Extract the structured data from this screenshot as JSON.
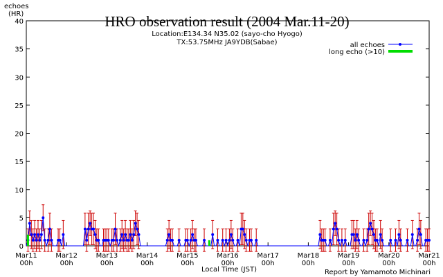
{
  "chart_data": {
    "type": "line",
    "title": "HRO observation result (2004 Mar.11-20)",
    "subtitle": [
      "Location:E134.34 N35.02 (sayo-cho Hyogo)",
      "TX:53.75MHz JA9YDB(Sabae)"
    ],
    "y_label": [
      "echoes",
      "(HR)"
    ],
    "x_label": "Local Time (JST)",
    "credit": "Report by Yamamoto Michinari",
    "ylim": [
      0,
      40
    ],
    "yticks": [
      0,
      5,
      10,
      15,
      20,
      25,
      30,
      35,
      40
    ],
    "legend": "upper right",
    "categories": [
      "Mar11 00h",
      null,
      null,
      null,
      null,
      null,
      null,
      null,
      null,
      null,
      null,
      null,
      null,
      null,
      null,
      null,
      null,
      null,
      null,
      null,
      null,
      null,
      null,
      null,
      "Mar12 00h",
      null,
      null,
      null,
      null,
      null,
      null,
      null,
      null,
      null,
      null,
      null,
      null,
      null,
      null,
      null,
      null,
      null,
      null,
      null,
      null,
      null,
      null,
      null,
      "Mar13 00h",
      null,
      null,
      null,
      null,
      null,
      null,
      null,
      null,
      null,
      null,
      null,
      null,
      null,
      null,
      null,
      null,
      null,
      null,
      null,
      null,
      null,
      null,
      null,
      "Mar14 00h",
      null,
      null,
      null,
      null,
      null,
      null,
      null,
      null,
      null,
      null,
      null,
      null,
      null,
      null,
      null,
      null,
      null,
      null,
      null,
      null,
      null,
      null,
      null,
      "Mar15 00h",
      null,
      null,
      null,
      null,
      null,
      null,
      null,
      null,
      null,
      null,
      null,
      null,
      null,
      null,
      null,
      null,
      null,
      null,
      null,
      null,
      null,
      null,
      null,
      "Mar16 00h",
      null,
      null,
      null,
      null,
      null,
      null,
      null,
      null,
      null,
      null,
      null,
      null,
      null,
      null,
      null,
      null,
      null,
      null,
      null,
      null,
      null,
      null,
      null,
      "Mar17 00h",
      null,
      null,
      null,
      null,
      null,
      null,
      null,
      null,
      null,
      null,
      null,
      null,
      null,
      null,
      null,
      null,
      null,
      null,
      null,
      null,
      null,
      null,
      null,
      "Mar18 00h",
      null,
      null,
      null,
      null,
      null,
      null,
      null,
      null,
      null,
      null,
      null,
      null,
      null,
      null,
      null,
      null,
      null,
      null,
      null,
      null,
      null,
      null,
      null,
      "Mar19 00h",
      null,
      null,
      null,
      null,
      null,
      null,
      null,
      null,
      null,
      null,
      null,
      null,
      null,
      null,
      null,
      null,
      null,
      null,
      null,
      null,
      null,
      null,
      null,
      "Mar20 00h",
      null,
      null,
      null,
      null,
      null,
      null,
      null,
      null,
      null,
      null,
      null,
      null,
      null,
      null,
      null,
      null,
      null,
      null,
      null,
      null,
      null,
      null,
      null,
      "Mar21 00h"
    ],
    "series": [
      {
        "name": "all echoes",
        "color": "#0000ff",
        "error_color": "#cc0000",
        "values": [
          0,
          1,
          4,
          2,
          1,
          2,
          1,
          2,
          1,
          2,
          5,
          1,
          0,
          1,
          3,
          1,
          0,
          0,
          0,
          1,
          1,
          0,
          2,
          0,
          0,
          0,
          0,
          0,
          0,
          0,
          0,
          0,
          0,
          0,
          0,
          3,
          1,
          3,
          4,
          3,
          3,
          2,
          1,
          1,
          0,
          0,
          1,
          1,
          1,
          1,
          0,
          1,
          1,
          3,
          1,
          0,
          1,
          2,
          1,
          2,
          1,
          1,
          2,
          1,
          2,
          4,
          3,
          2,
          0,
          0,
          0,
          0,
          0,
          0,
          0,
          0,
          0,
          0,
          0,
          0,
          0,
          0,
          0,
          0,
          1,
          2,
          1,
          1,
          0,
          0,
          0,
          1,
          0,
          0,
          0,
          1,
          1,
          0,
          1,
          2,
          1,
          1,
          0,
          0,
          0,
          0,
          1,
          0,
          0,
          0,
          0,
          2,
          0,
          0,
          1,
          0,
          0,
          1,
          0,
          1,
          0,
          1,
          2,
          1,
          0,
          0,
          1,
          0,
          3,
          3,
          2,
          1,
          0,
          1,
          1,
          0,
          0,
          1,
          0,
          0,
          0,
          0,
          0,
          0,
          0,
          0,
          0,
          0,
          0,
          0,
          0,
          0,
          0,
          0,
          0,
          0,
          0,
          0,
          0,
          0,
          0,
          0,
          0,
          0,
          0,
          0,
          0,
          0,
          0,
          0,
          0,
          0,
          0,
          0,
          0,
          2,
          1,
          1,
          1,
          0,
          0,
          1,
          0,
          3,
          4,
          3,
          1,
          0,
          1,
          0,
          1,
          0,
          0,
          0,
          2,
          2,
          1,
          2,
          1,
          0,
          0,
          1,
          0,
          1,
          3,
          4,
          3,
          2,
          1,
          1,
          0,
          2,
          1,
          0,
          0,
          0,
          0,
          1,
          0,
          0,
          1,
          0,
          2,
          1,
          0,
          0,
          0,
          1,
          0,
          0,
          2,
          0,
          0,
          1,
          3,
          2,
          0,
          0,
          1,
          1,
          1
        ],
        "errors": [
          0,
          2,
          2.2,
          2.5,
          2,
          2.5,
          2,
          2.5,
          2,
          2.5,
          2.3,
          2,
          0,
          2,
          2.8,
          2,
          0,
          0,
          0,
          2,
          2,
          0,
          2.5,
          0,
          0,
          0,
          0,
          0,
          0,
          0,
          0,
          0,
          0,
          0,
          0,
          2.8,
          2,
          2.8,
          2.2,
          2.8,
          2.8,
          2.5,
          2,
          2,
          0,
          0,
          2,
          2,
          2,
          2,
          0,
          2,
          2,
          2.8,
          2,
          0,
          2,
          2.5,
          2,
          2.5,
          2,
          2,
          2.5,
          2,
          2.5,
          2.2,
          2.8,
          2.5,
          0,
          0,
          0,
          0,
          0,
          0,
          0,
          0,
          0,
          0,
          0,
          0,
          0,
          0,
          0,
          0,
          2,
          2.5,
          2,
          2,
          0,
          0,
          0,
          2,
          0,
          0,
          0,
          2,
          2,
          0,
          2,
          2.5,
          2,
          2,
          0,
          0,
          0,
          0,
          2,
          0,
          0,
          0,
          0,
          2.5,
          0,
          0,
          2,
          0,
          0,
          2,
          0,
          2,
          0,
          2,
          2.5,
          2,
          0,
          0,
          2,
          0,
          2.8,
          2.8,
          2.5,
          2,
          0,
          2,
          2,
          0,
          0,
          2,
          0,
          0,
          0,
          0,
          0,
          0,
          0,
          0,
          0,
          0,
          0,
          0,
          0,
          0,
          0,
          0,
          0,
          0,
          0,
          0,
          0,
          0,
          0,
          0,
          0,
          0,
          0,
          0,
          0,
          0,
          0,
          0,
          0,
          0,
          0,
          0,
          0,
          2.5,
          2,
          2,
          2,
          0,
          0,
          2,
          0,
          2.8,
          2.2,
          2.8,
          2,
          0,
          2,
          0,
          2,
          0,
          0,
          0,
          2.5,
          2.5,
          2,
          2.5,
          2,
          0,
          0,
          2,
          0,
          2,
          2.8,
          2.2,
          2.8,
          2.5,
          2,
          2,
          0,
          2.5,
          2,
          0,
          0,
          0,
          0,
          2,
          0,
          0,
          2,
          0,
          2.5,
          2,
          0,
          0,
          0,
          2,
          0,
          0,
          2.5,
          0,
          0,
          2,
          2.8,
          2.5,
          0,
          0,
          2,
          2,
          2
        ]
      },
      {
        "name": "long echo (>10)",
        "color": "#00dd00",
        "values": [
          0,
          2,
          0,
          0,
          0,
          0,
          0,
          0,
          0,
          0,
          0,
          0,
          0,
          0,
          0,
          0,
          0,
          0,
          0,
          0,
          0,
          0,
          0,
          0,
          0,
          0,
          0,
          0,
          0,
          0,
          0,
          0,
          0,
          0,
          0,
          0,
          0,
          0,
          0,
          0,
          0,
          0,
          0,
          0,
          0,
          0,
          0,
          0,
          0,
          0,
          0,
          0,
          0,
          0,
          0,
          0,
          0,
          0,
          0,
          0,
          0,
          0,
          0,
          0,
          0,
          0,
          0,
          0,
          0,
          0,
          0,
          0,
          0,
          0,
          0,
          0,
          0,
          0,
          0,
          0,
          0,
          0,
          0,
          0,
          0,
          0,
          0,
          0,
          0,
          0,
          0,
          0,
          0,
          0,
          0,
          0,
          0,
          0,
          0,
          0,
          0,
          0,
          0,
          0,
          0,
          0,
          0,
          0,
          0,
          1,
          0,
          0,
          0,
          0,
          0,
          0,
          0,
          0,
          0,
          0,
          0,
          0,
          0,
          0,
          0,
          0,
          0,
          0,
          0,
          0,
          0,
          0,
          0,
          0,
          0,
          0,
          0,
          0,
          0,
          0,
          0,
          0,
          0,
          0,
          0,
          0,
          0,
          0,
          0,
          0,
          0,
          0,
          0,
          0,
          0,
          0,
          0,
          0,
          0,
          0,
          0,
          0,
          0,
          0,
          0,
          0,
          0,
          0,
          0,
          0,
          0,
          0,
          0,
          0,
          0,
          0,
          0,
          0,
          0,
          0,
          0,
          0,
          0,
          0,
          0,
          0,
          0,
          0,
          0,
          0,
          0,
          0,
          0,
          0,
          0,
          0,
          0,
          0,
          0,
          0,
          0,
          0,
          0,
          0,
          0,
          0,
          0,
          0,
          0,
          0,
          0,
          0,
          0,
          0,
          0,
          0,
          0,
          0,
          0,
          0,
          0,
          0,
          0,
          0,
          0,
          0,
          0,
          0,
          0,
          0,
          0,
          0,
          0,
          0,
          0,
          0,
          0,
          0,
          0,
          0,
          0
        ]
      }
    ]
  }
}
